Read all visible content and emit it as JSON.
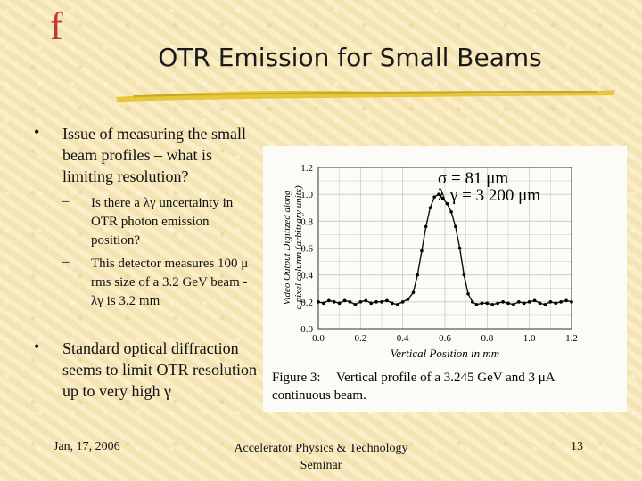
{
  "logo": "f",
  "title": "OTR Emission for Small Beams",
  "bullets": [
    {
      "text": "Issue of measuring the small beam profiles – what is limiting resolution?"
    },
    {
      "text": "Standard optical diffraction seems to limit OTR resolution up to very high γ"
    }
  ],
  "sub_bullets": [
    {
      "text": "Is there a λγ uncertainty in OTR photon emission position?"
    },
    {
      "text": "This detector measures 100 μ rms size of a 3.2 GeV beam - λγ is 3.2 mm"
    }
  ],
  "footer": {
    "date": "Jan, 17, 2006",
    "center": "Accelerator Physics & Technology Seminar",
    "page": "13"
  },
  "chart_data": {
    "type": "scatter",
    "xlabel": "Vertical Position in mm",
    "ylabel": "Video Output Digitized along a pixel column (arbitrary units)",
    "xlim": [
      0,
      1.2
    ],
    "ylim": [
      0,
      1.2
    ],
    "x_ticks": [
      "0.0",
      "0.2",
      "0.4",
      "0.6",
      "0.8",
      "1.0",
      "1.2"
    ],
    "y_ticks": [
      "0.0",
      "0.2",
      "0.4",
      "0.6",
      "0.8",
      "1.0",
      "1.2"
    ],
    "grid": true,
    "annotations": [
      "σ = 81 μm",
      "λ γ = 3 200 μm"
    ],
    "caption_label": "Figure 3:",
    "caption": "Vertical profile of a 3.245 GeV and 3 μA continuous beam.",
    "x": [
      0.0,
      0.025,
      0.05,
      0.075,
      0.1,
      0.125,
      0.15,
      0.175,
      0.2,
      0.225,
      0.25,
      0.275,
      0.3,
      0.325,
      0.35,
      0.375,
      0.4,
      0.425,
      0.45,
      0.47,
      0.49,
      0.51,
      0.53,
      0.55,
      0.57,
      0.59,
      0.61,
      0.63,
      0.65,
      0.67,
      0.69,
      0.71,
      0.73,
      0.75,
      0.775,
      0.8,
      0.825,
      0.85,
      0.875,
      0.9,
      0.925,
      0.95,
      0.975,
      1.0,
      1.025,
      1.05,
      1.075,
      1.1,
      1.125,
      1.15,
      1.175,
      1.2
    ],
    "y": [
      0.2,
      0.19,
      0.21,
      0.2,
      0.19,
      0.21,
      0.2,
      0.18,
      0.2,
      0.21,
      0.19,
      0.2,
      0.2,
      0.21,
      0.19,
      0.18,
      0.2,
      0.22,
      0.27,
      0.4,
      0.58,
      0.76,
      0.9,
      0.98,
      1.0,
      0.97,
      0.93,
      0.87,
      0.76,
      0.6,
      0.4,
      0.26,
      0.2,
      0.18,
      0.19,
      0.19,
      0.18,
      0.19,
      0.2,
      0.19,
      0.18,
      0.2,
      0.19,
      0.2,
      0.21,
      0.19,
      0.18,
      0.2,
      0.19,
      0.2,
      0.21,
      0.2
    ]
  }
}
